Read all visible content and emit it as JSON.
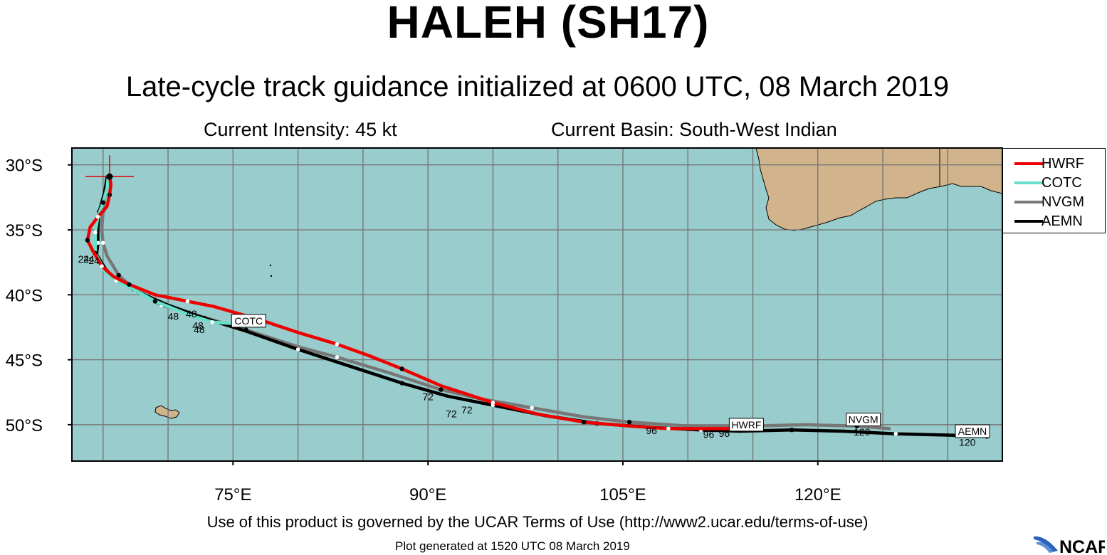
{
  "header": {
    "title": "HALEH (SH17)",
    "subtitle": "Late-cycle track guidance initialized at 0600 UTC, 08 March 2019",
    "intensity": "Current Intensity: 45 kt",
    "basin": "Current Basin: South-West Indian"
  },
  "map": {
    "lon_range": [
      62.6,
      134.2
    ],
    "lat_range": [
      -52.8,
      -28.7
    ],
    "projection": "equirectangular",
    "ocean_color": "#99cccc",
    "land_color": "#d2b48c",
    "grid_color": "#777777",
    "grid_on": true,
    "x_ticks": [
      {
        "value": 75,
        "label": "75°E"
      },
      {
        "value": 90,
        "label": "90°E"
      },
      {
        "value": 105,
        "label": "105°E"
      },
      {
        "value": 120,
        "label": "120°E"
      }
    ],
    "y_ticks": [
      {
        "value": -30,
        "label": "30°S"
      },
      {
        "value": -35,
        "label": "35°S"
      },
      {
        "value": -40,
        "label": "40°S"
      },
      {
        "value": -45,
        "label": "45°S"
      },
      {
        "value": -50,
        "label": "50°S"
      }
    ],
    "current_position": {
      "lon": 65.5,
      "lat": -30.9
    }
  },
  "chart_data": {
    "type": "map-track",
    "series": [
      {
        "name": "HWRF",
        "color": "#ee0000",
        "points": [
          [
            65.5,
            -30.9
          ],
          [
            65.6,
            -31.5
          ],
          [
            65.5,
            -32.3
          ],
          [
            65.3,
            -33.2
          ],
          [
            64.6,
            -34.0
          ],
          [
            64.0,
            -34.8
          ],
          [
            63.8,
            -35.8
          ],
          [
            64.2,
            -36.6
          ],
          [
            64.9,
            -37.8
          ],
          [
            65.8,
            -38.6
          ],
          [
            67.0,
            -39.2
          ],
          [
            69.0,
            -40.0
          ],
          [
            71.5,
            -40.5
          ],
          [
            73.5,
            -40.9
          ],
          [
            77.0,
            -41.9
          ],
          [
            80.0,
            -42.9
          ],
          [
            83.0,
            -43.8
          ],
          [
            85.5,
            -44.7
          ],
          [
            88.0,
            -45.7
          ],
          [
            91.0,
            -47.0
          ],
          [
            95.0,
            -48.3
          ],
          [
            98.5,
            -49.2
          ],
          [
            102.0,
            -49.8
          ],
          [
            105.5,
            -50.1
          ],
          [
            108.5,
            -50.3
          ],
          [
            111.0,
            -50.3
          ],
          [
            114.5,
            -50.3
          ]
        ]
      },
      {
        "name": "COTC",
        "color": "#66e0c8",
        "points": [
          [
            65.4,
            -30.9
          ],
          [
            65.3,
            -31.8
          ],
          [
            65.0,
            -32.9
          ],
          [
            64.6,
            -34.0
          ],
          [
            64.4,
            -35.2
          ],
          [
            64.4,
            -36.1
          ],
          [
            64.4,
            -36.8
          ],
          [
            65.2,
            -38.3
          ],
          [
            66.0,
            -38.9
          ],
          [
            67.0,
            -39.4
          ],
          [
            69.0,
            -40.5
          ],
          [
            71.5,
            -41.5
          ],
          [
            73.4,
            -42.1
          ],
          [
            74.8,
            -42.2
          ]
        ]
      },
      {
        "name": "NVGM",
        "color": "#777777",
        "points": [
          [
            65.3,
            -30.9
          ],
          [
            65.2,
            -32.0
          ],
          [
            65.0,
            -33.5
          ],
          [
            64.9,
            -35.0
          ],
          [
            65.0,
            -36.0
          ],
          [
            65.3,
            -37.0
          ],
          [
            66.2,
            -38.5
          ],
          [
            67.3,
            -39.5
          ],
          [
            69.5,
            -40.8
          ],
          [
            73.0,
            -41.8
          ],
          [
            76.0,
            -42.7
          ],
          [
            80.0,
            -44.0
          ],
          [
            83.0,
            -44.8
          ],
          [
            87.0,
            -46.0
          ],
          [
            91.0,
            -47.3
          ],
          [
            94.0,
            -48.0
          ],
          [
            98.0,
            -48.7
          ],
          [
            102.0,
            -49.4
          ],
          [
            105.5,
            -49.8
          ],
          [
            110.0,
            -50.1
          ],
          [
            115.0,
            -50.1
          ],
          [
            119.0,
            -50.0
          ],
          [
            123.0,
            -50.1
          ],
          [
            125.5,
            -50.3
          ]
        ]
      },
      {
        "name": "AEMN",
        "color": "#000000",
        "points": [
          [
            65.3,
            -31.0
          ],
          [
            65.1,
            -32.2
          ],
          [
            64.7,
            -33.6
          ],
          [
            64.6,
            -35.0
          ],
          [
            64.6,
            -36.0
          ],
          [
            64.5,
            -36.9
          ],
          [
            65.3,
            -38.2
          ],
          [
            66.2,
            -38.9
          ],
          [
            67.5,
            -39.7
          ],
          [
            70.0,
            -40.8
          ],
          [
            72.8,
            -41.8
          ],
          [
            76.0,
            -42.8
          ],
          [
            80.0,
            -44.2
          ],
          [
            84.0,
            -45.5
          ],
          [
            88.0,
            -46.8
          ],
          [
            91.5,
            -47.8
          ],
          [
            95.0,
            -48.5
          ],
          [
            99.0,
            -49.3
          ],
          [
            103.0,
            -49.9
          ],
          [
            107.0,
            -50.2
          ],
          [
            111.0,
            -50.4
          ],
          [
            114.0,
            -50.5
          ],
          [
            118.0,
            -50.4
          ],
          [
            122.0,
            -50.5
          ],
          [
            126.0,
            -50.7
          ],
          [
            130.0,
            -50.8
          ],
          [
            133.0,
            -50.9
          ]
        ]
      }
    ],
    "forecast_hour_labels": [
      {
        "text": "24",
        "lon": 63.5,
        "lat": -37.2
      },
      {
        "text": "24",
        "lon": 63.9,
        "lat": -37.2
      },
      {
        "text": "24",
        "lon": 64.3,
        "lat": -37.3
      },
      {
        "text": "48",
        "lon": 70.4,
        "lat": -41.6
      },
      {
        "text": "48",
        "lon": 71.8,
        "lat": -41.4
      },
      {
        "text": "48",
        "lon": 72.3,
        "lat": -42.3
      },
      {
        "text": "48",
        "lon": 72.4,
        "lat": -42.6
      },
      {
        "text": "72",
        "lon": 90.0,
        "lat": -47.8
      },
      {
        "text": "72",
        "lon": 91.8,
        "lat": -49.1
      },
      {
        "text": "72",
        "lon": 93.0,
        "lat": -48.8
      },
      {
        "text": "96",
        "lon": 107.2,
        "lat": -50.4
      },
      {
        "text": "96",
        "lon": 111.6,
        "lat": -50.7
      },
      {
        "text": "96",
        "lon": 112.8,
        "lat": -50.6
      },
      {
        "text": "120",
        "lon": 123.4,
        "lat": -50.5
      },
      {
        "text": "120",
        "lon": 131.5,
        "lat": -51.3
      }
    ],
    "track_end_labels": [
      {
        "text": "COTC",
        "lon": 76.2,
        "lat": -42.0
      },
      {
        "text": "HWRF",
        "lon": 114.5,
        "lat": -50.0
      },
      {
        "text": "NVGM",
        "lon": 123.5,
        "lat": -49.6
      },
      {
        "text": "AEMN",
        "lon": 131.9,
        "lat": -50.5
      }
    ]
  },
  "legend": {
    "items": [
      {
        "label": "HWRF",
        "color": "#ee0000"
      },
      {
        "label": "COTC",
        "color": "#66e0c8"
      },
      {
        "label": "NVGM",
        "color": "#777777"
      },
      {
        "label": "AEMN",
        "color": "#000000"
      }
    ]
  },
  "footer": {
    "terms": "Use of this product is governed by the UCAR Terms of Use (http://www2.ucar.edu/terms-of-use)",
    "generated": "Plot generated at 1520 UTC   08 March 2019",
    "logo_text": "NCAR"
  }
}
